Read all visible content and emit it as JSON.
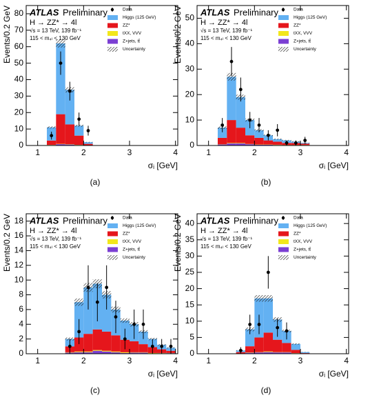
{
  "chart_data": [
    {
      "type": "histogram",
      "caption": "(a)",
      "xlabel": "σᵢ [GeV]",
      "ylabel": "Events/0.2 GeV",
      "annotations": {
        "brand": "ATLAS",
        "status": "Preliminary",
        "process": "H → ZZ* → 4l",
        "energy": "√s = 13 TeV, 139 fb⁻¹",
        "cut": "115 < m₄ₗ < 130 GeV"
      },
      "xlim": [
        0.75,
        4.05
      ],
      "xticks": [
        1,
        2,
        3,
        4
      ],
      "ylim": [
        0,
        85
      ],
      "yticks": [
        0,
        10,
        20,
        30,
        40,
        50,
        60,
        70,
        80
      ],
      "bins": [
        1.2,
        1.4,
        1.6,
        1.8,
        2.0,
        2.2
      ],
      "series": [
        {
          "name": "Higgs (125 GeV)",
          "color": "#63b1f2",
          "values": [
            8,
            43,
            21,
            6,
            1
          ]
        },
        {
          "name": "ZZ*",
          "color": "#e5161c",
          "values": [
            2.6,
            18,
            12,
            5.6,
            0.9
          ]
        },
        {
          "name": "tXX, VVV",
          "color": "#f2e71c",
          "values": [
            0.1,
            0.2,
            0.2,
            0.1,
            0
          ]
        },
        {
          "name": "Z+jets, tt̄",
          "color": "#7b3fd3",
          "values": [
            0.3,
            0.8,
            0.6,
            0.3,
            0.1
          ]
        }
      ],
      "uncertainty": {
        "name": "Uncertainty",
        "values": [
          0.6,
          2.5,
          1.6,
          0.6,
          0.2
        ]
      },
      "data": {
        "name": "Data",
        "x": [
          1.3,
          1.5,
          1.7,
          1.9,
          2.1
        ],
        "values": [
          6,
          50,
          33,
          16,
          9
        ],
        "errors": [
          2.4,
          7.1,
          5.7,
          4,
          3
        ]
      }
    },
    {
      "type": "histogram",
      "caption": "(b)",
      "xlabel": "σᵢ [GeV]",
      "ylabel": "Events/0.2 GeV",
      "annotations": {
        "brand": "ATLAS",
        "status": "Preliminary",
        "process": "H → ZZ* → 4l",
        "energy": "√s = 13 TeV, 139 fb⁻¹",
        "cut": "115 < m₄ₗ < 130 GeV"
      },
      "xlim": [
        0.75,
        4.05
      ],
      "xticks": [
        1,
        2,
        3,
        4
      ],
      "ylim": [
        0,
        55
      ],
      "yticks": [
        0,
        10,
        20,
        30,
        40,
        50
      ],
      "bins": [
        1.2,
        1.4,
        1.6,
        1.8,
        2.0,
        2.2,
        2.4,
        2.6,
        2.8,
        3.0,
        3.2
      ],
      "series": [
        {
          "name": "Higgs (125 GeV)",
          "color": "#63b1f2",
          "values": [
            4,
            17,
            12,
            6,
            3,
            2,
            1,
            1,
            0.5,
            0.3
          ]
        },
        {
          "name": "ZZ*",
          "color": "#e5161c",
          "values": [
            2.5,
            9,
            6,
            3.4,
            2.6,
            1.6,
            1.2,
            0.8,
            0.8,
            0.5
          ]
        },
        {
          "name": "tXX, VVV",
          "color": "#f2e71c",
          "values": [
            0.1,
            0.2,
            0.2,
            0.1,
            0.1,
            0.1,
            0.1,
            0.1,
            0.1,
            0.1
          ]
        },
        {
          "name": "Z+jets, tt̄",
          "color": "#7b3fd3",
          "values": [
            0.4,
            0.8,
            0.8,
            0.5,
            0.3,
            0.3,
            0.2,
            0.1,
            0.1,
            0.1
          ]
        }
      ],
      "uncertainty": {
        "name": "Uncertainty",
        "values": [
          0.5,
          1.5,
          1,
          0.6,
          0.4,
          0.3,
          0.2,
          0.2,
          0.2,
          0.1
        ]
      },
      "data": {
        "name": "Data",
        "x": [
          1.3,
          1.5,
          1.7,
          1.9,
          2.1,
          2.3,
          2.5,
          2.7,
          2.9,
          3.1
        ],
        "values": [
          8,
          33,
          22,
          10,
          8,
          4,
          6,
          1,
          1,
          2
        ],
        "errors": [
          2.8,
          5.7,
          4.7,
          3.2,
          2.8,
          2,
          2.4,
          1,
          1,
          1.4
        ]
      }
    },
    {
      "type": "histogram",
      "caption": "(c)",
      "xlabel": "σᵢ [GeV]",
      "ylabel": "Events/0.2 GeV",
      "annotations": {
        "brand": "ATLAS",
        "status": "Preliminary",
        "process": "H → ZZ* → 4l",
        "energy": "√s = 13 TeV, 139 fb⁻¹",
        "cut": "115 < m₄ₗ < 130 GeV"
      },
      "xlim": [
        0.75,
        4.05
      ],
      "xticks": [
        1,
        2,
        3,
        4
      ],
      "ylim": [
        0,
        19
      ],
      "yticks": [
        0,
        2,
        4,
        6,
        8,
        10,
        12,
        14,
        16,
        18
      ],
      "bins": [
        1.6,
        1.8,
        2.0,
        2.2,
        2.4,
        2.6,
        2.8,
        3.0,
        3.2,
        3.4,
        3.6,
        3.8,
        4.0
      ],
      "series": [
        {
          "name": "Higgs (125 GeV)",
          "color": "#63b1f2",
          "values": [
            1,
            4.8,
            6.3,
            6.2,
            5,
            3.5,
            2.6,
            2.3,
            1.7,
            1.1,
            0.6,
            0.4
          ]
        },
        {
          "name": "ZZ*",
          "color": "#e5161c",
          "values": [
            0.8,
            1.9,
            2.4,
            2.8,
            2.6,
            2.2,
            1.7,
            1.5,
            1.1,
            0.8,
            0.5,
            0.3
          ]
        },
        {
          "name": "tXX, VVV",
          "color": "#f2e71c",
          "values": [
            0.05,
            0.1,
            0.1,
            0.1,
            0.1,
            0.1,
            0.1,
            0.05,
            0.05,
            0.05,
            0.03,
            0.02
          ]
        },
        {
          "name": "Z+jets, tt̄",
          "color": "#7b3fd3",
          "values": [
            0.15,
            0.2,
            0.2,
            0.4,
            0.3,
            0.2,
            0.1,
            0.15,
            0.15,
            0.05,
            0.07,
            0.08
          ]
        }
      ],
      "uncertainty": {
        "name": "Uncertainty",
        "values": [
          0.2,
          0.5,
          0.6,
          0.6,
          0.5,
          0.4,
          0.3,
          0.3,
          0.2,
          0.15,
          0.1,
          0.08
        ]
      },
      "data": {
        "name": "Data",
        "x": [
          1.7,
          1.9,
          2.1,
          2.3,
          2.5,
          2.7,
          2.9,
          3.1,
          3.3,
          3.5,
          3.7,
          3.9
        ],
        "values": [
          1,
          3,
          9,
          7,
          9,
          5,
          2,
          4,
          4,
          1,
          1,
          1
        ],
        "errors": [
          1,
          1.7,
          3,
          2.6,
          3,
          2.2,
          1.4,
          2,
          2,
          1,
          1,
          1
        ]
      }
    },
    {
      "type": "histogram",
      "caption": "(d)",
      "xlabel": "σᵢ [GeV]",
      "ylabel": "Events/0.2 GeV",
      "annotations": {
        "brand": "ATLAS",
        "status": "Preliminary",
        "process": "H → ZZ* → 4l",
        "energy": "√s = 13 TeV, 139 fb⁻¹",
        "cut": "115 < m₄ₗ < 130 GeV"
      },
      "xlim": [
        0.75,
        4.05
      ],
      "xticks": [
        1,
        2,
        3,
        4
      ],
      "ylim": [
        0,
        43
      ],
      "yticks": [
        0,
        5,
        10,
        15,
        20,
        25,
        30,
        35,
        40
      ],
      "bins": [
        1.6,
        1.8,
        2.0,
        2.2,
        2.4,
        2.6,
        2.8,
        3.0,
        3.2
      ],
      "series": [
        {
          "name": "Higgs (125 GeV)",
          "color": "#63b1f2",
          "values": [
            0.5,
            5.2,
            12,
            10.5,
            6.2,
            3.7,
            1.8,
            0.3
          ]
        },
        {
          "name": "ZZ*",
          "color": "#e5161c",
          "values": [
            0.4,
            1.9,
            4.5,
            5.8,
            3.8,
            2.8,
            1,
            0.2
          ]
        },
        {
          "name": "tXX, VVV",
          "color": "#f2e71c",
          "values": [
            0,
            0.1,
            0.1,
            0.2,
            0.1,
            0.1,
            0.05,
            0
          ]
        },
        {
          "name": "Z+jets, tt̄",
          "color": "#7b3fd3",
          "values": [
            0.1,
            0.3,
            0.4,
            0.5,
            0.4,
            0.4,
            0.15,
            0
          ]
        }
      ],
      "uncertainty": {
        "name": "Uncertainty",
        "values": [
          0.1,
          0.6,
          1,
          1,
          0.7,
          0.4,
          0.2,
          0.05
        ]
      },
      "data": {
        "name": "Data",
        "x": [
          1.7,
          1.9,
          2.1,
          2.3,
          2.5,
          2.7
        ],
        "values": [
          1,
          9,
          9,
          25,
          8,
          7
        ],
        "errors": [
          1,
          3,
          3,
          5,
          2.8,
          2.6
        ]
      }
    }
  ]
}
